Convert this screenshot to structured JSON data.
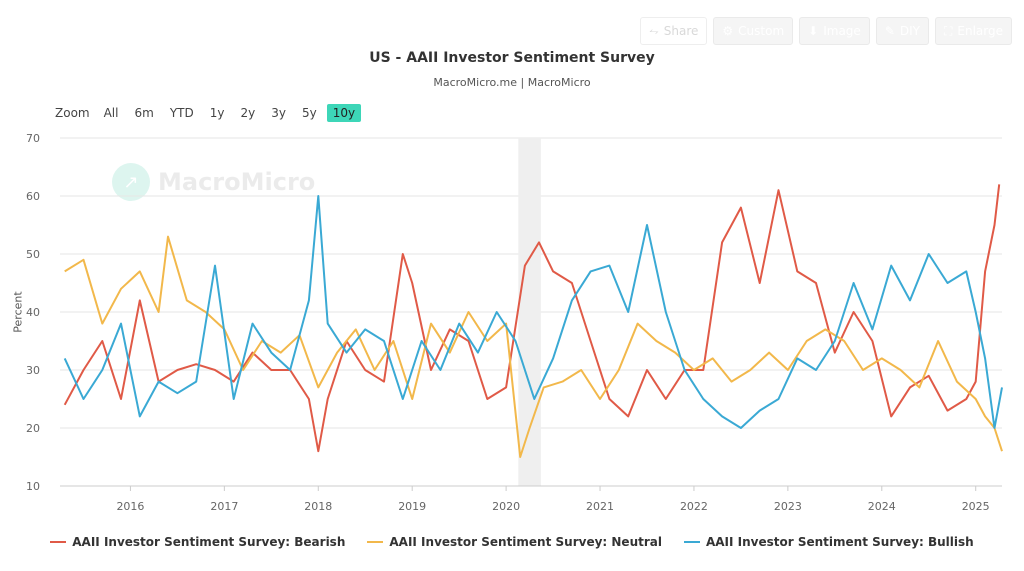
{
  "toolbar": {
    "buttons": [
      {
        "label": "Share",
        "icon": "share-icon"
      },
      {
        "label": "Custom",
        "icon": "gear-icon"
      },
      {
        "label": "Image",
        "icon": "download-icon"
      },
      {
        "label": "DIY",
        "icon": "pencil-icon"
      },
      {
        "label": "Enlarge",
        "icon": "expand-icon"
      }
    ]
  },
  "watermark": "MacroMicro",
  "zoom": {
    "label": "Zoom",
    "options": [
      "All",
      "6m",
      "YTD",
      "1y",
      "2y",
      "3y",
      "5y",
      "10y"
    ],
    "selected": "10y"
  },
  "colors": {
    "bearish": "#e05a47",
    "neutral": "#f2b84b",
    "bullish": "#3aa9d4",
    "zoom_active": "#3dd6b8",
    "recession_band": "#efefef"
  },
  "chart_data": {
    "type": "line",
    "title": "US - AAII Investor Sentiment Survey",
    "subtitle": "MacroMicro.me | MacroMicro",
    "ylabel": "Percent",
    "xlabel": "",
    "ylim": [
      10,
      70
    ],
    "yticks": [
      10,
      20,
      30,
      40,
      50,
      60,
      70
    ],
    "xlim": [
      2015.25,
      2025.28
    ],
    "xticks": [
      "2016",
      "2017",
      "2018",
      "2019",
      "2020",
      "2021",
      "2022",
      "2023",
      "2024",
      "2025"
    ],
    "grid": true,
    "legend_position": "bottom",
    "shaded_band": {
      "from": 2020.13,
      "to": 2020.37
    },
    "series": [
      {
        "name": "AAII Investor Sentiment Survey: Bearish",
        "color": "#e05a47",
        "x": [
          2015.3,
          2015.5,
          2015.7,
          2015.9,
          2016.1,
          2016.3,
          2016.5,
          2016.7,
          2016.9,
          2017.1,
          2017.3,
          2017.5,
          2017.7,
          2017.9,
          2018.0,
          2018.1,
          2018.3,
          2018.5,
          2018.7,
          2018.9,
          2019.0,
          2019.2,
          2019.4,
          2019.6,
          2019.8,
          2020.0,
          2020.2,
          2020.35,
          2020.5,
          2020.7,
          2020.9,
          2021.1,
          2021.3,
          2021.5,
          2021.7,
          2021.9,
          2022.1,
          2022.3,
          2022.5,
          2022.7,
          2022.9,
          2023.1,
          2023.3,
          2023.5,
          2023.7,
          2023.9,
          2024.1,
          2024.3,
          2024.5,
          2024.7,
          2024.9,
          2025.0,
          2025.1,
          2025.2,
          2025.25
        ],
        "values": [
          24,
          30,
          35,
          25,
          42,
          28,
          30,
          31,
          30,
          28,
          33,
          30,
          30,
          25,
          16,
          25,
          35,
          30,
          28,
          50,
          45,
          30,
          37,
          35,
          25,
          27,
          48,
          52,
          47,
          45,
          35,
          25,
          22,
          30,
          25,
          30,
          30,
          52,
          58,
          45,
          61,
          47,
          45,
          33,
          40,
          35,
          22,
          27,
          29,
          23,
          25,
          28,
          47,
          55,
          62
        ]
      },
      {
        "name": "AAII Investor Sentiment Survey: Neutral",
        "color": "#f2b84b",
        "x": [
          2015.3,
          2015.5,
          2015.7,
          2015.9,
          2016.1,
          2016.3,
          2016.4,
          2016.6,
          2016.8,
          2017.0,
          2017.2,
          2017.4,
          2017.6,
          2017.8,
          2018.0,
          2018.2,
          2018.4,
          2018.6,
          2018.8,
          2019.0,
          2019.2,
          2019.4,
          2019.6,
          2019.8,
          2020.0,
          2020.15,
          2020.25,
          2020.4,
          2020.6,
          2020.8,
          2021.0,
          2021.2,
          2021.4,
          2021.6,
          2021.8,
          2022.0,
          2022.2,
          2022.4,
          2022.6,
          2022.8,
          2023.0,
          2023.2,
          2023.4,
          2023.6,
          2023.8,
          2024.0,
          2024.2,
          2024.4,
          2024.6,
          2024.8,
          2025.0,
          2025.1,
          2025.2,
          2025.28
        ],
        "values": [
          47,
          49,
          38,
          44,
          47,
          40,
          53,
          42,
          40,
          37,
          30,
          35,
          33,
          36,
          27,
          33,
          37,
          30,
          35,
          25,
          38,
          33,
          40,
          35,
          38,
          15,
          20,
          27,
          28,
          30,
          25,
          30,
          38,
          35,
          33,
          30,
          32,
          28,
          30,
          33,
          30,
          35,
          37,
          35,
          30,
          32,
          30,
          27,
          35,
          28,
          25,
          22,
          20,
          16
        ]
      },
      {
        "name": "AAII Investor Sentiment Survey: Bullish",
        "color": "#3aa9d4",
        "x": [
          2015.3,
          2015.5,
          2015.7,
          2015.9,
          2016.1,
          2016.3,
          2016.5,
          2016.7,
          2016.9,
          2017.1,
          2017.3,
          2017.5,
          2017.7,
          2017.9,
          2018.0,
          2018.1,
          2018.3,
          2018.5,
          2018.7,
          2018.9,
          2019.1,
          2019.3,
          2019.5,
          2019.7,
          2019.9,
          2020.1,
          2020.3,
          2020.5,
          2020.7,
          2020.9,
          2021.1,
          2021.3,
          2021.5,
          2021.7,
          2021.9,
          2022.1,
          2022.3,
          2022.5,
          2022.7,
          2022.9,
          2023.1,
          2023.3,
          2023.5,
          2023.7,
          2023.9,
          2024.1,
          2024.3,
          2024.5,
          2024.7,
          2024.9,
          2025.0,
          2025.1,
          2025.2,
          2025.28
        ],
        "values": [
          32,
          25,
          30,
          38,
          22,
          28,
          26,
          28,
          48,
          25,
          38,
          33,
          30,
          42,
          60,
          38,
          33,
          37,
          35,
          25,
          35,
          30,
          38,
          33,
          40,
          35,
          25,
          32,
          42,
          47,
          48,
          40,
          55,
          40,
          30,
          25,
          22,
          20,
          23,
          25,
          32,
          30,
          35,
          45,
          37,
          48,
          42,
          50,
          45,
          47,
          40,
          32,
          20,
          27
        ]
      }
    ]
  }
}
